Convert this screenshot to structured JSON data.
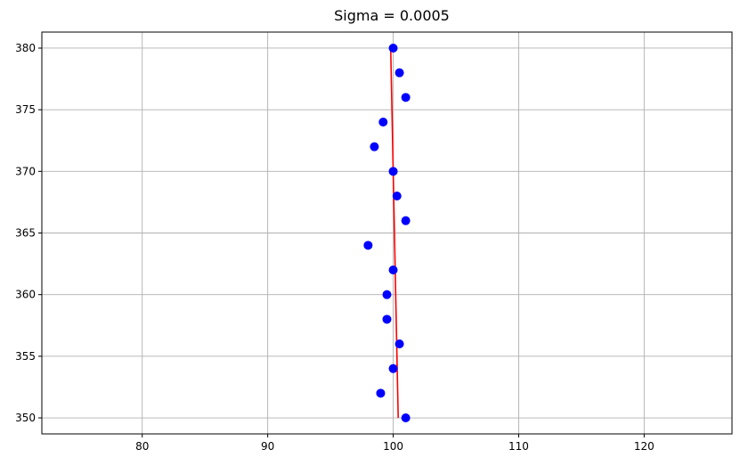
{
  "chart_data": {
    "type": "scatter",
    "title": "Sigma = 0.0005",
    "xlabel": "",
    "ylabel": "",
    "xlim": [
      72,
      127
    ],
    "ylim": [
      348.7,
      381.3
    ],
    "xticks": [
      80,
      90,
      100,
      110,
      120
    ],
    "yticks": [
      350,
      355,
      360,
      365,
      370,
      375,
      380
    ],
    "grid": true,
    "colors": {
      "points": "#0000ff",
      "line": "#ff0000",
      "grid": "#b0b0b0",
      "axes": "#000000"
    },
    "series": [
      {
        "kind": "scatter",
        "points": [
          {
            "x": 100.0,
            "y": 380
          },
          {
            "x": 100.5,
            "y": 378
          },
          {
            "x": 101.0,
            "y": 376
          },
          {
            "x": 99.2,
            "y": 374
          },
          {
            "x": 98.5,
            "y": 372
          },
          {
            "x": 100.0,
            "y": 370
          },
          {
            "x": 100.3,
            "y": 368
          },
          {
            "x": 101.0,
            "y": 366
          },
          {
            "x": 98.0,
            "y": 364
          },
          {
            "x": 100.0,
            "y": 362
          },
          {
            "x": 99.5,
            "y": 360
          },
          {
            "x": 99.5,
            "y": 358
          },
          {
            "x": 100.5,
            "y": 356
          },
          {
            "x": 100.0,
            "y": 354
          },
          {
            "x": 99.0,
            "y": 352
          },
          {
            "x": 101.0,
            "y": 350
          }
        ]
      },
      {
        "kind": "line",
        "points": [
          {
            "x": 99.8,
            "y": 380
          },
          {
            "x": 100.4,
            "y": 350
          }
        ]
      }
    ]
  }
}
